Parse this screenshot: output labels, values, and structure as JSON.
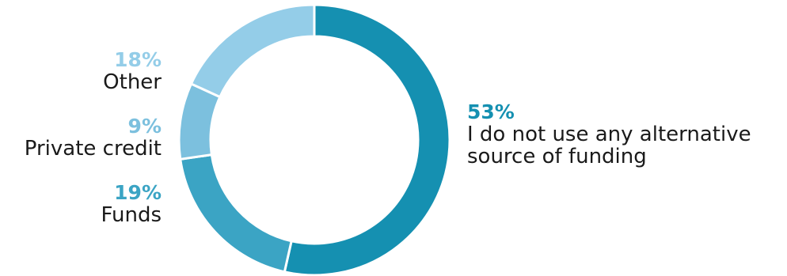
{
  "chart_data": {
    "type": "pie",
    "style": "donut",
    "categories": [
      "I do not use any alternative source of funding",
      "Funds",
      "Private credit",
      "Other"
    ],
    "values": [
      53,
      19,
      9,
      18
    ],
    "value_labels": [
      "53%",
      "19%",
      "9%",
      "18%"
    ],
    "colors": [
      "#1590b1",
      "#3ba4c4",
      "#7cc0de",
      "#94cde8"
    ],
    "label_lines": {
      "none": [
        "I do not use any alternative",
        "source of funding"
      ],
      "funds": [
        "Funds"
      ],
      "private": [
        "Private credit"
      ],
      "other": [
        "Other"
      ]
    }
  }
}
